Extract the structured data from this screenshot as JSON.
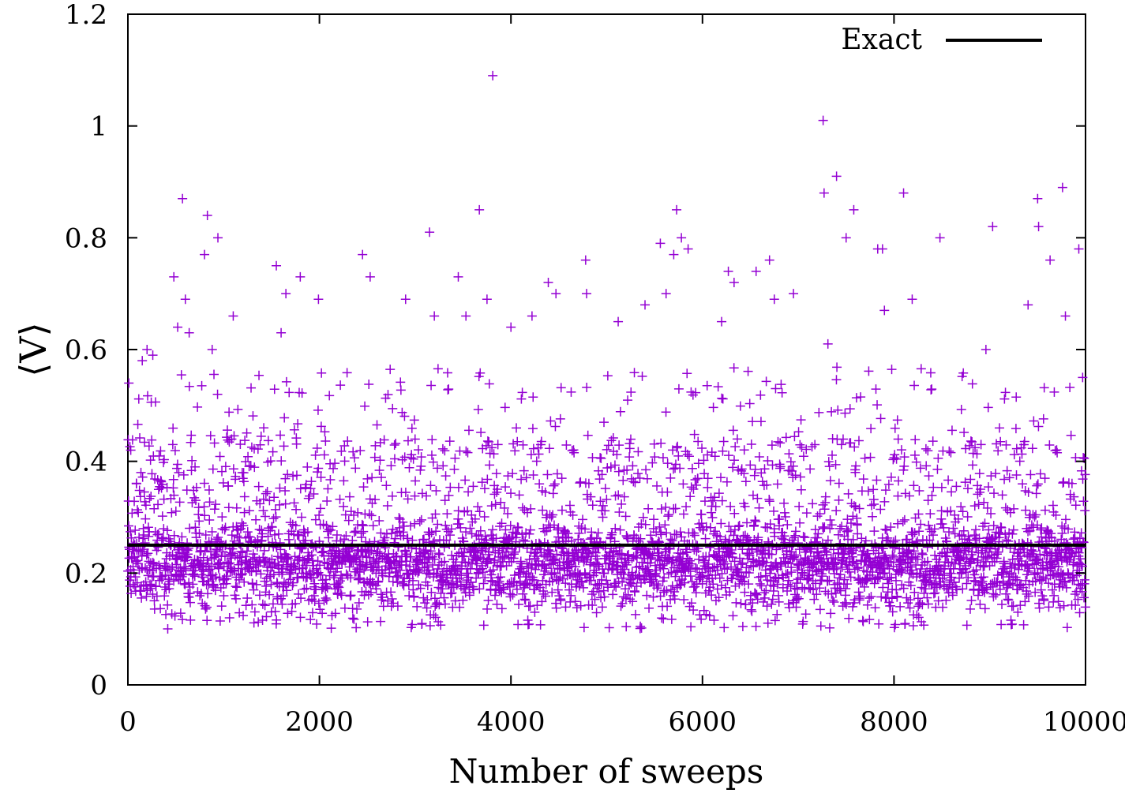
{
  "chart_data": {
    "type": "scatter",
    "title": "",
    "xlabel": "Number of sweeps",
    "ylabel": "⟨V⟩",
    "xlim": [
      0,
      10000
    ],
    "ylim": [
      0,
      1.2
    ],
    "xticks": [
      "0",
      "2000",
      "4000",
      "6000",
      "8000",
      "10000"
    ],
    "yticks": [
      "0",
      "0.2",
      "0.4",
      "0.6",
      "0.8",
      "1",
      "1.2"
    ],
    "grid": false,
    "legend_position": "top-right",
    "series": [
      {
        "kind": "scatter",
        "marker": "plus",
        "color": "#9400d3",
        "points": [
          [
            10,
            0.54
          ],
          [
            30,
            0.42
          ],
          [
            90,
            0.36
          ],
          [
            150,
            0.58
          ],
          [
            200,
            0.6
          ],
          [
            260,
            0.59
          ],
          [
            480,
            0.73
          ],
          [
            520,
            0.64
          ],
          [
            570,
            0.87
          ],
          [
            600,
            0.69
          ],
          [
            640,
            0.63
          ],
          [
            800,
            0.77
          ],
          [
            830,
            0.84
          ],
          [
            880,
            0.6
          ],
          [
            940,
            0.8
          ],
          [
            1100,
            0.66
          ],
          [
            1550,
            0.75
          ],
          [
            1600,
            0.63
          ],
          [
            1650,
            0.7
          ],
          [
            1800,
            0.73
          ],
          [
            1990,
            0.69
          ],
          [
            2450,
            0.77
          ],
          [
            2530,
            0.73
          ],
          [
            2900,
            0.69
          ],
          [
            3150,
            0.81
          ],
          [
            3200,
            0.66
          ],
          [
            3450,
            0.73
          ],
          [
            3530,
            0.66
          ],
          [
            3670,
            0.85
          ],
          [
            3750,
            0.69
          ],
          [
            3810,
            1.09
          ],
          [
            4000,
            0.64
          ],
          [
            4220,
            0.66
          ],
          [
            4390,
            0.72
          ],
          [
            4470,
            0.7
          ],
          [
            4780,
            0.76
          ],
          [
            4790,
            0.7
          ],
          [
            5120,
            0.65
          ],
          [
            5400,
            0.68
          ],
          [
            5560,
            0.79
          ],
          [
            5620,
            0.7
          ],
          [
            5700,
            0.77
          ],
          [
            5730,
            0.85
          ],
          [
            5780,
            0.8
          ],
          [
            5850,
            0.78
          ],
          [
            6200,
            0.65
          ],
          [
            6270,
            0.74
          ],
          [
            6330,
            0.72
          ],
          [
            6560,
            0.74
          ],
          [
            6700,
            0.76
          ],
          [
            6750,
            0.69
          ],
          [
            6950,
            0.7
          ],
          [
            7260,
            1.01
          ],
          [
            7270,
            0.88
          ],
          [
            7310,
            0.61
          ],
          [
            7400,
            0.91
          ],
          [
            7500,
            0.8
          ],
          [
            7580,
            0.85
          ],
          [
            7830,
            0.78
          ],
          [
            7880,
            0.78
          ],
          [
            7900,
            0.67
          ],
          [
            8100,
            0.88
          ],
          [
            8190,
            0.69
          ],
          [
            8480,
            0.8
          ],
          [
            8960,
            0.6
          ],
          [
            9030,
            0.82
          ],
          [
            9400,
            0.68
          ],
          [
            9500,
            0.87
          ],
          [
            9510,
            0.82
          ],
          [
            9630,
            0.76
          ],
          [
            9760,
            0.89
          ],
          [
            9790,
            0.66
          ],
          [
            9930,
            0.78
          ],
          [
            9970,
            0.55
          ]
        ]
      },
      {
        "name": "Exact",
        "kind": "line",
        "color": "#000000",
        "y": 0.25
      }
    ]
  }
}
